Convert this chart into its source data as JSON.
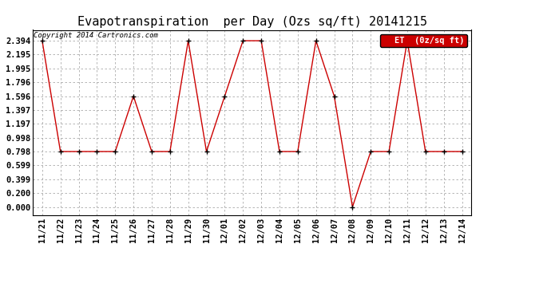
{
  "title": "Evapotranspiration  per Day (Ozs sq/ft) 20141215",
  "copyright": "Copyright 2014 Cartronics.com",
  "legend_label": "ET  (0z/sq ft)",
  "x_labels": [
    "11/21",
    "11/22",
    "11/23",
    "11/24",
    "11/25",
    "11/26",
    "11/27",
    "11/28",
    "11/29",
    "11/30",
    "12/01",
    "12/02",
    "12/03",
    "12/04",
    "12/05",
    "12/06",
    "12/07",
    "12/08",
    "12/09",
    "12/10",
    "12/11",
    "12/12",
    "12/13",
    "12/14"
  ],
  "y_values": [
    2.394,
    0.798,
    0.798,
    0.798,
    0.798,
    1.596,
    0.798,
    0.798,
    2.394,
    0.798,
    1.596,
    2.394,
    2.394,
    0.798,
    0.798,
    2.394,
    1.596,
    0.0,
    0.798,
    0.798,
    2.394,
    0.798,
    0.798,
    0.798
  ],
  "y_ticks": [
    0.0,
    0.2,
    0.399,
    0.599,
    0.798,
    0.998,
    1.197,
    1.397,
    1.596,
    1.796,
    1.995,
    2.195,
    2.394
  ],
  "line_color": "#cc0000",
  "marker_color": "black",
  "marker_size": 5,
  "grid_color": "#aaaaaa",
  "bg_color": "#ffffff",
  "title_fontsize": 11,
  "tick_fontsize": 7.5,
  "ylim": [
    -0.12,
    2.55
  ],
  "legend_bg": "#cc0000",
  "legend_text_color": "white"
}
